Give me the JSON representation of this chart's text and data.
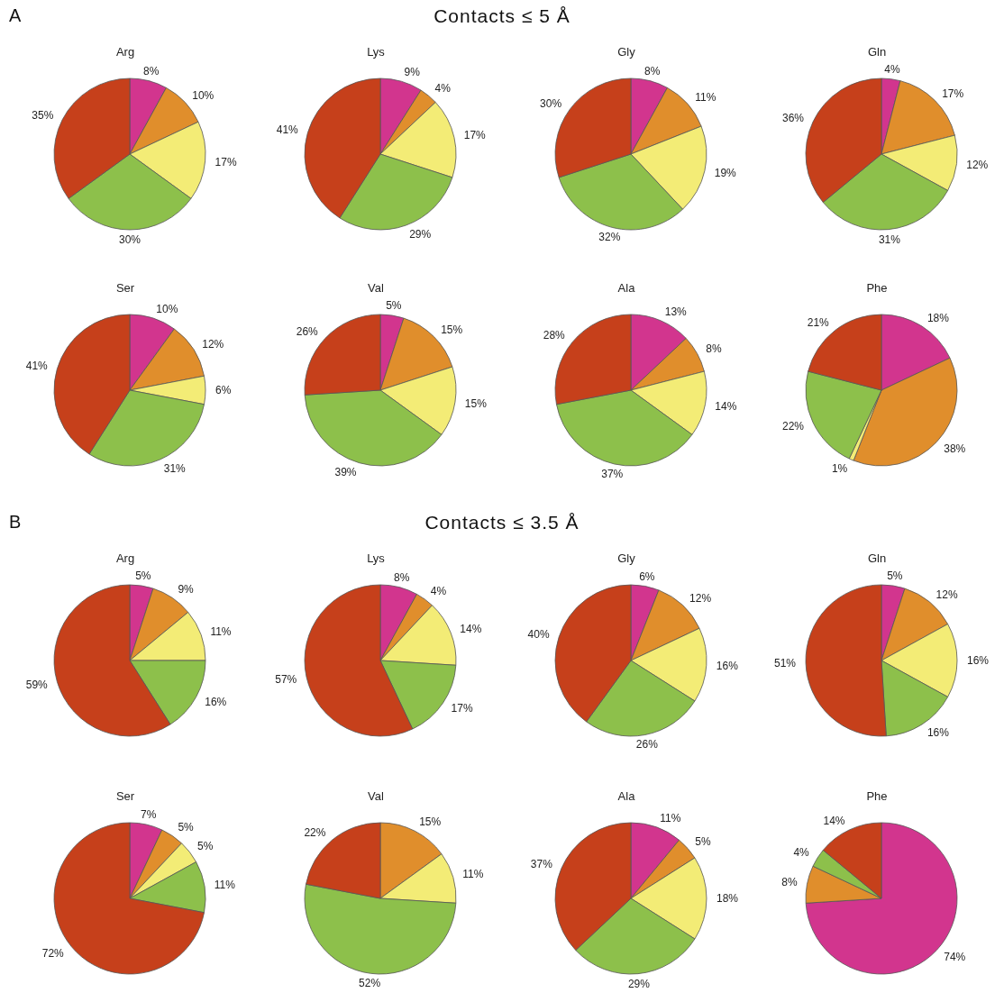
{
  "chart_data": [
    {
      "type": "pie",
      "title": "Arg",
      "annotations": [
        "A",
        "Contacts ≤ 5 Å"
      ],
      "categories": [
        null,
        null,
        null,
        null,
        null
      ],
      "values": [
        8,
        10,
        17,
        30,
        35
      ],
      "value_labels": [
        "8%",
        "10%",
        "17%",
        "30%",
        "35%"
      ],
      "colors": [
        "#d2358e",
        "#e08e2c",
        "#f3ec76",
        "#8dc04b",
        "#c6401b"
      ]
    },
    {
      "type": "pie",
      "title": "Lys",
      "categories": [
        null,
        null,
        null,
        null,
        null
      ],
      "values": [
        9,
        4,
        17,
        29,
        41
      ],
      "value_labels": [
        "9%",
        "4%",
        "17%",
        "29%",
        "41%"
      ],
      "colors": [
        "#d2358e",
        "#e08e2c",
        "#f3ec76",
        "#8dc04b",
        "#c6401b"
      ]
    },
    {
      "type": "pie",
      "title": "Gly",
      "categories": [
        null,
        null,
        null,
        null,
        null
      ],
      "values": [
        8,
        11,
        19,
        32,
        30
      ],
      "value_labels": [
        "8%",
        "11%",
        "19%",
        "32%",
        "30%"
      ],
      "colors": [
        "#d2358e",
        "#e08e2c",
        "#f3ec76",
        "#8dc04b",
        "#c6401b"
      ]
    },
    {
      "type": "pie",
      "title": "Gln",
      "categories": [
        null,
        null,
        null,
        null,
        null
      ],
      "values": [
        4,
        17,
        12,
        31,
        36
      ],
      "value_labels": [
        "4%",
        "17%",
        "12%",
        "31%",
        "36%"
      ],
      "colors": [
        "#d2358e",
        "#e08e2c",
        "#f3ec76",
        "#8dc04b",
        "#c6401b"
      ]
    },
    {
      "type": "pie",
      "title": "Ser",
      "categories": [
        null,
        null,
        null,
        null,
        null
      ],
      "values": [
        10,
        12,
        6,
        31,
        41
      ],
      "value_labels": [
        "10%",
        "12%",
        "6%",
        "31%",
        "41%"
      ],
      "colors": [
        "#d2358e",
        "#e08e2c",
        "#f3ec76",
        "#8dc04b",
        "#c6401b"
      ]
    },
    {
      "type": "pie",
      "title": "Val",
      "categories": [
        null,
        null,
        null,
        null,
        null
      ],
      "values": [
        5,
        15,
        15,
        39,
        26
      ],
      "value_labels": [
        "5%",
        "15%",
        "15%",
        "39%",
        "26%"
      ],
      "colors": [
        "#d2358e",
        "#e08e2c",
        "#f3ec76",
        "#8dc04b",
        "#c6401b"
      ]
    },
    {
      "type": "pie",
      "title": "Ala",
      "categories": [
        null,
        null,
        null,
        null,
        null
      ],
      "values": [
        13,
        8,
        14,
        37,
        28
      ],
      "value_labels": [
        "13%",
        "8%",
        "14%",
        "37%",
        "28%"
      ],
      "colors": [
        "#d2358e",
        "#e08e2c",
        "#f3ec76",
        "#8dc04b",
        "#c6401b"
      ]
    },
    {
      "type": "pie",
      "title": "Phe",
      "categories": [
        null,
        null,
        null,
        null,
        null
      ],
      "values": [
        18,
        38,
        1,
        22,
        21
      ],
      "value_labels": [
        "18%",
        "38%",
        "1%",
        "22%",
        "21%"
      ],
      "colors": [
        "#d2358e",
        "#e08e2c",
        "#f3ec76",
        "#8dc04b",
        "#c6401b"
      ]
    },
    {
      "type": "pie",
      "title": "Arg",
      "annotations": [
        "B",
        "Contacts ≤ 3.5 Å"
      ],
      "categories": [
        null,
        null,
        null,
        null,
        null
      ],
      "values": [
        5,
        9,
        11,
        16,
        59
      ],
      "value_labels": [
        "5%",
        "9%",
        "11%",
        "16%",
        "59%"
      ],
      "colors": [
        "#d2358e",
        "#e08e2c",
        "#f3ec76",
        "#8dc04b",
        "#c6401b"
      ]
    },
    {
      "type": "pie",
      "title": "Lys",
      "categories": [
        null,
        null,
        null,
        null,
        null
      ],
      "values": [
        8,
        4,
        14,
        17,
        57
      ],
      "value_labels": [
        "8%",
        "4%",
        "14%",
        "17%",
        "57%"
      ],
      "colors": [
        "#d2358e",
        "#e08e2c",
        "#f3ec76",
        "#8dc04b",
        "#c6401b"
      ]
    },
    {
      "type": "pie",
      "title": "Gly",
      "categories": [
        null,
        null,
        null,
        null,
        null
      ],
      "values": [
        6,
        12,
        16,
        26,
        40
      ],
      "value_labels": [
        "6%",
        "12%",
        "16%",
        "26%",
        "40%"
      ],
      "colors": [
        "#d2358e",
        "#e08e2c",
        "#f3ec76",
        "#8dc04b",
        "#c6401b"
      ]
    },
    {
      "type": "pie",
      "title": "Gln",
      "categories": [
        null,
        null,
        null,
        null,
        null
      ],
      "values": [
        5,
        12,
        16,
        16,
        51
      ],
      "value_labels": [
        "5%",
        "12%",
        "16%",
        "16%",
        "51%"
      ],
      "colors": [
        "#d2358e",
        "#e08e2c",
        "#f3ec76",
        "#8dc04b",
        "#c6401b"
      ]
    },
    {
      "type": "pie",
      "title": "Ser",
      "categories": [
        null,
        null,
        null,
        null,
        null
      ],
      "values": [
        7,
        5,
        5,
        11,
        72
      ],
      "value_labels": [
        "7%",
        "5%",
        "5%",
        "11%",
        "72%"
      ],
      "colors": [
        "#d2358e",
        "#e08e2c",
        "#f3ec76",
        "#8dc04b",
        "#c6401b"
      ]
    },
    {
      "type": "pie",
      "title": "Val",
      "categories": [
        null,
        null,
        null,
        null,
        null
      ],
      "values": [
        0,
        15,
        11,
        52,
        22
      ],
      "value_labels": [
        null,
        "15%",
        "11%",
        "52%",
        "22%"
      ],
      "colors": [
        "#d2358e",
        "#e08e2c",
        "#f3ec76",
        "#8dc04b",
        "#c6401b"
      ]
    },
    {
      "type": "pie",
      "title": "Ala",
      "categories": [
        null,
        null,
        null,
        null,
        null
      ],
      "values": [
        11,
        5,
        18,
        29,
        37
      ],
      "value_labels": [
        "11%",
        "5%",
        "18%",
        "29%",
        "37%"
      ],
      "colors": [
        "#d2358e",
        "#e08e2c",
        "#f3ec76",
        "#8dc04b",
        "#c6401b"
      ]
    },
    {
      "type": "pie",
      "title": "Phe",
      "categories": [
        null,
        null,
        null,
        null,
        null
      ],
      "values": [
        74,
        8,
        0,
        4,
        14
      ],
      "value_labels": [
        "74%",
        "8%",
        null,
        "4%",
        "14%"
      ],
      "colors": [
        "#d2358e",
        "#e08e2c",
        "#f3ec76",
        "#8dc04b",
        "#c6401b"
      ]
    }
  ]
}
